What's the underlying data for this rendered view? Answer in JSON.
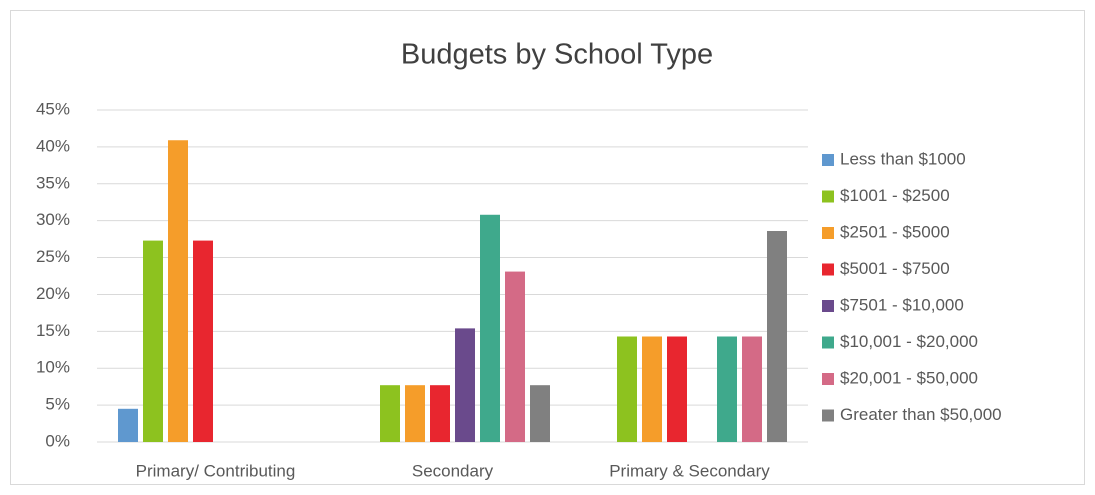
{
  "chart_data": {
    "type": "bar",
    "title": "Budgets by School Type",
    "categories": [
      "Primary/ Contributing",
      "Secondary",
      "Primary & Secondary"
    ],
    "series": [
      {
        "name": "Less than $1000",
        "color": "#5f98cf",
        "values": [
          4.5,
          0,
          0
        ]
      },
      {
        "name": "$1001 - $2500",
        "color": "#8dc21f",
        "values": [
          27.3,
          7.7,
          14.3
        ]
      },
      {
        "name": "$2501 - $5000",
        "color": "#f59d2a",
        "values": [
          40.9,
          7.7,
          14.3
        ]
      },
      {
        "name": "$5001 - $7500",
        "color": "#e8262f",
        "values": [
          27.3,
          7.7,
          14.3
        ]
      },
      {
        "name": "$7501 - $10,000",
        "color": "#6a4a8c",
        "values": [
          0,
          15.4,
          0
        ]
      },
      {
        "name": "$10,001 - $20,000",
        "color": "#3fa98c",
        "values": [
          0,
          30.8,
          14.3
        ]
      },
      {
        "name": "$20,001 - $50,000",
        "color": "#d46a86",
        "values": [
          0,
          23.1,
          14.3
        ]
      },
      {
        "name": "Greater than $50,000",
        "color": "#808080",
        "values": [
          0,
          7.7,
          28.6
        ]
      }
    ],
    "ylim": [
      0,
      45
    ],
    "yticks": [
      {
        "value": 0,
        "label": "0%"
      },
      {
        "value": 5,
        "label": "5%"
      },
      {
        "value": 10,
        "label": "10%"
      },
      {
        "value": 15,
        "label": "15%"
      },
      {
        "value": 20,
        "label": "20%"
      },
      {
        "value": 25,
        "label": "25%"
      },
      {
        "value": 30,
        "label": "30%"
      },
      {
        "value": 35,
        "label": "35%"
      },
      {
        "value": 40,
        "label": "40%"
      },
      {
        "value": 45,
        "label": "45%"
      }
    ],
    "grid": true,
    "legend": "right"
  }
}
